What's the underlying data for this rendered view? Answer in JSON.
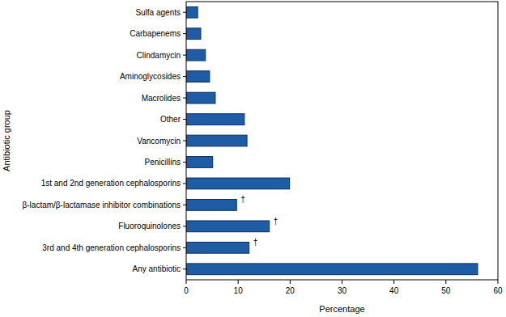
{
  "chart_data": {
    "type": "bar",
    "orientation": "horizontal",
    "x_label": "Percentage",
    "y_label": "Antibiotic group",
    "categories": [
      "Sulfa agents",
      "Carbapenems",
      "Clindamycin",
      "Aminoglycosides",
      "Macrolides",
      "Other",
      "Vancomycin",
      "Penicillins",
      "1st and 2nd generation cephalosporins",
      "β-lactam/β-lactamase inhibitor combinations",
      "Fluoroquinolones",
      "3rd and 4th generation cephalosporins",
      "Any antibiotic"
    ],
    "values": [
      2.2,
      2.8,
      3.7,
      4.5,
      5.6,
      11.2,
      11.7,
      5.1,
      19.9,
      9.7,
      16.0,
      12.1,
      56.1
    ],
    "color": "#1f5ca6",
    "xlim": [
      0,
      60
    ],
    "xticks": [
      0,
      10,
      20,
      30,
      40,
      50,
      60
    ],
    "grid": false,
    "annotations": [
      {
        "category": "β-lactam/β-lactamase inhibitor combinations",
        "text": "†"
      },
      {
        "category": "Fluoroquinolones",
        "text": "†"
      },
      {
        "category": "3rd and 4th generation cephalosporins",
        "text": "†"
      }
    ]
  }
}
